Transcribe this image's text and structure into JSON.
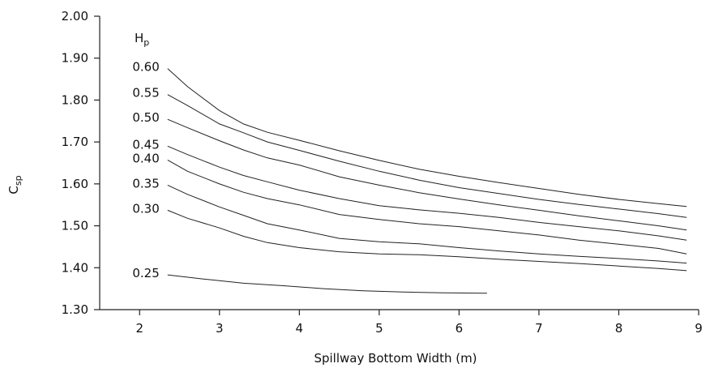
{
  "chart_data": {
    "type": "line",
    "title": "",
    "xlabel": "Spillway Bottom Width (m)",
    "ylabel": "C",
    "ylabel_sub": "sp",
    "xlim": [
      1.5,
      9.0
    ],
    "ylim": [
      1.3,
      2.0
    ],
    "x_ticks": [
      2,
      3,
      4,
      5,
      6,
      7,
      8,
      9
    ],
    "x_tick_labels": [
      "2",
      "3",
      "4",
      "5",
      "6",
      "7",
      "8",
      "9"
    ],
    "y_ticks": [
      1.3,
      1.4,
      1.5,
      1.6,
      1.7,
      1.8,
      1.9,
      2.0
    ],
    "y_tick_labels": [
      "1.30",
      "1.40",
      "1.50",
      "1.60",
      "1.70",
      "1.80",
      "1.90",
      "2.00"
    ],
    "grid": false,
    "legend_header": "H",
    "legend_header_sub": "p",
    "series": [
      {
        "name": "0.60",
        "x": [
          2.35,
          2.6,
          3.0,
          3.3,
          3.6,
          4.0,
          4.5,
          5.0,
          5.5,
          6.0,
          6.5,
          7.0,
          7.5,
          8.0,
          8.5,
          8.85
        ],
        "y": [
          1.875,
          1.832,
          1.775,
          1.743,
          1.723,
          1.704,
          1.679,
          1.656,
          1.635,
          1.618,
          1.603,
          1.589,
          1.575,
          1.563,
          1.553,
          1.546
        ]
      },
      {
        "name": "0.55",
        "x": [
          2.35,
          2.6,
          3.0,
          3.3,
          3.6,
          4.0,
          4.5,
          5.0,
          5.5,
          6.0,
          6.5,
          7.0,
          7.5,
          8.0,
          8.5,
          8.85
        ],
        "y": [
          1.813,
          1.787,
          1.743,
          1.722,
          1.7,
          1.68,
          1.654,
          1.63,
          1.609,
          1.591,
          1.577,
          1.563,
          1.551,
          1.54,
          1.529,
          1.52
        ]
      },
      {
        "name": "0.50",
        "x": [
          2.35,
          2.6,
          3.0,
          3.3,
          3.6,
          4.0,
          4.5,
          5.0,
          5.5,
          6.0,
          6.5,
          7.0,
          7.5,
          8.0,
          8.5,
          8.85
        ],
        "y": [
          1.754,
          1.734,
          1.703,
          1.681,
          1.662,
          1.645,
          1.617,
          1.597,
          1.579,
          1.564,
          1.55,
          1.537,
          1.524,
          1.512,
          1.5,
          1.49
        ]
      },
      {
        "name": "0.45",
        "x": [
          2.35,
          2.6,
          3.0,
          3.3,
          3.6,
          4.0,
          4.5,
          5.0,
          5.5,
          6.0,
          6.5,
          7.0,
          7.5,
          8.0,
          8.5,
          8.85
        ],
        "y": [
          1.69,
          1.67,
          1.64,
          1.62,
          1.605,
          1.585,
          1.565,
          1.548,
          1.538,
          1.53,
          1.52,
          1.508,
          1.498,
          1.488,
          1.476,
          1.466
        ]
      },
      {
        "name": "0.40",
        "x": [
          2.35,
          2.6,
          3.0,
          3.3,
          3.6,
          4.0,
          4.5,
          5.0,
          5.5,
          6.0,
          6.5,
          7.0,
          7.5,
          8.0,
          8.5,
          8.85
        ],
        "y": [
          1.657,
          1.63,
          1.6,
          1.58,
          1.565,
          1.55,
          1.527,
          1.515,
          1.505,
          1.498,
          1.488,
          1.478,
          1.466,
          1.456,
          1.446,
          1.433
        ]
      },
      {
        "name": "0.35",
        "x": [
          2.35,
          2.6,
          3.0,
          3.3,
          3.6,
          4.0,
          4.5,
          5.0,
          5.5,
          6.0,
          6.5,
          7.0,
          7.5,
          8.0,
          8.5,
          8.85
        ],
        "y": [
          1.597,
          1.575,
          1.545,
          1.525,
          1.505,
          1.49,
          1.47,
          1.462,
          1.457,
          1.448,
          1.44,
          1.433,
          1.427,
          1.422,
          1.416,
          1.411
        ]
      },
      {
        "name": "0.30",
        "x": [
          2.35,
          2.6,
          3.0,
          3.3,
          3.6,
          4.0,
          4.5,
          5.0,
          5.5,
          6.0,
          6.5,
          7.0,
          7.5,
          8.0,
          8.5,
          8.85
        ],
        "y": [
          1.537,
          1.518,
          1.495,
          1.475,
          1.46,
          1.448,
          1.438,
          1.433,
          1.431,
          1.426,
          1.42,
          1.415,
          1.41,
          1.404,
          1.398,
          1.393
        ]
      },
      {
        "name": "0.25",
        "x": [
          2.35,
          2.8,
          3.3,
          3.8,
          4.3,
          4.8,
          5.3,
          5.8,
          6.35
        ],
        "y": [
          1.383,
          1.373,
          1.363,
          1.357,
          1.35,
          1.345,
          1.342,
          1.34,
          1.339
        ]
      }
    ]
  }
}
